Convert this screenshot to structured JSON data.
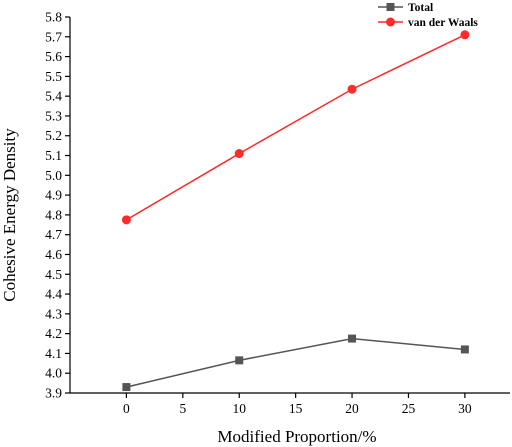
{
  "chart_data": {
    "type": "line",
    "xlabel": "Modified Proportion/%",
    "ylabel": "Cohesive Energy Density",
    "xlim": [
      -5,
      34
    ],
    "ylim": [
      3.9,
      5.8
    ],
    "xticks": [
      0,
      5,
      10,
      15,
      20,
      25,
      30
    ],
    "yticks": [
      3.9,
      4.0,
      4.1,
      4.2,
      4.3,
      4.4,
      4.5,
      4.6,
      4.7,
      4.8,
      4.9,
      5.0,
      5.1,
      5.2,
      5.3,
      5.4,
      5.5,
      5.6,
      5.7,
      5.8
    ],
    "x": [
      0,
      10,
      20,
      30
    ],
    "series": [
      {
        "name": "Total",
        "values": [
          3.93,
          4.065,
          4.175,
          4.12
        ],
        "color": "#555555",
        "marker": "square"
      },
      {
        "name": "van der Waals",
        "values": [
          4.775,
          5.11,
          5.435,
          5.71
        ],
        "color": "#ff2b2b",
        "marker": "circle"
      }
    ],
    "legend": "top-right",
    "grid": false
  }
}
